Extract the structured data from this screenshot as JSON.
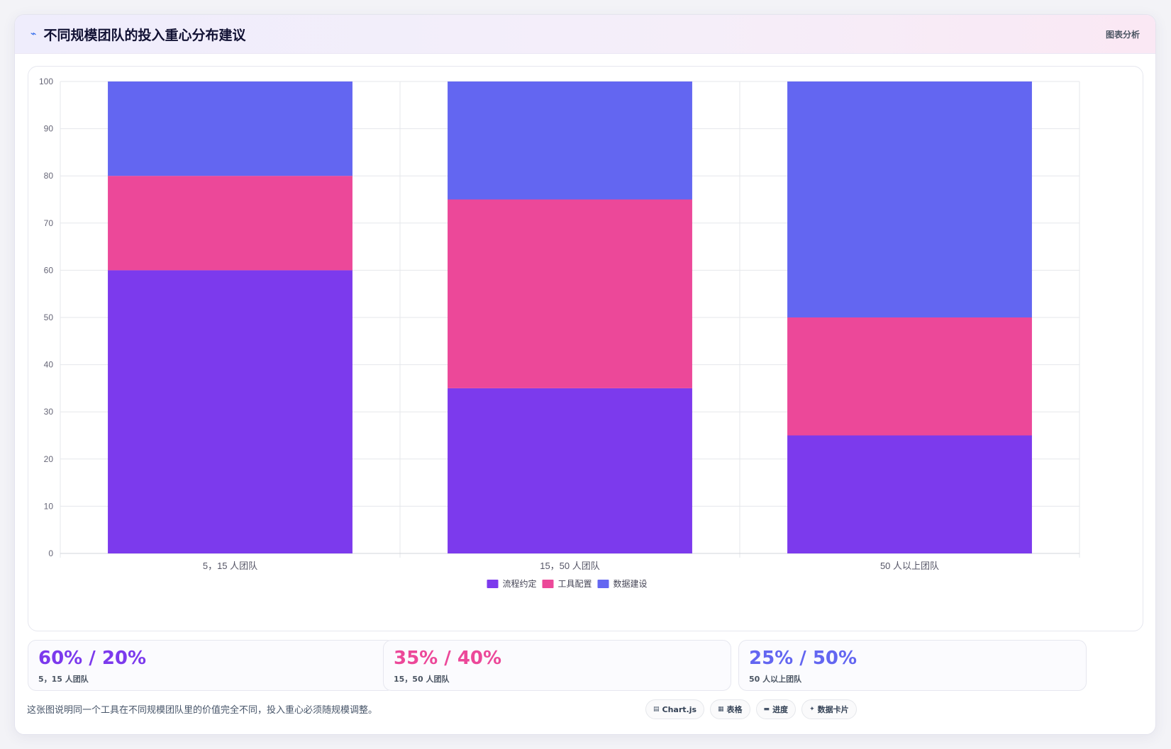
{
  "header": {
    "icon": "chart-line-icon",
    "title": "不同规模团队的投入重心分布建议",
    "tag": "图表分析"
  },
  "chart_data": {
    "type": "bar",
    "stacked": true,
    "categories": [
      "5，15 人团队",
      "15，50 人团队",
      "50 人以上团队"
    ],
    "series": [
      {
        "name": "流程约定",
        "color": "#7c3aed",
        "values": [
          60,
          35,
          25
        ]
      },
      {
        "name": "工具配置",
        "color": "#ec4899",
        "values": [
          20,
          40,
          25
        ]
      },
      {
        "name": "数据建设",
        "color": "#6366f1",
        "values": [
          20,
          25,
          50
        ]
      }
    ],
    "ylim": [
      0,
      100
    ],
    "yticks": [
      0,
      10,
      20,
      30,
      40,
      50,
      60,
      70,
      80,
      90,
      100
    ],
    "grid": true,
    "legend": "bottom"
  },
  "stats": [
    {
      "value": "60% / 20%",
      "label": "5，15 人团队",
      "color": "#7c3aed"
    },
    {
      "value": "35% / 40%",
      "label": "15，50 人团队",
      "color": "#ec4899"
    },
    {
      "value": "25% / 50%",
      "label": "50 人以上团队",
      "color": "#6366f1"
    }
  ],
  "footer": {
    "note": "这张图说明同一个工具在不同规模团队里的价值完全不同，投入重心必须随规模调整。"
  },
  "chips": [
    {
      "icon": "chart-icon",
      "glyph": "▤",
      "label": "Chart.js"
    },
    {
      "icon": "table-icon",
      "glyph": "▦",
      "label": "表格"
    },
    {
      "icon": "progress-icon",
      "glyph": "▬",
      "label": "进度"
    },
    {
      "icon": "sparkle-icon",
      "glyph": "✦",
      "label": "数据卡片"
    }
  ]
}
